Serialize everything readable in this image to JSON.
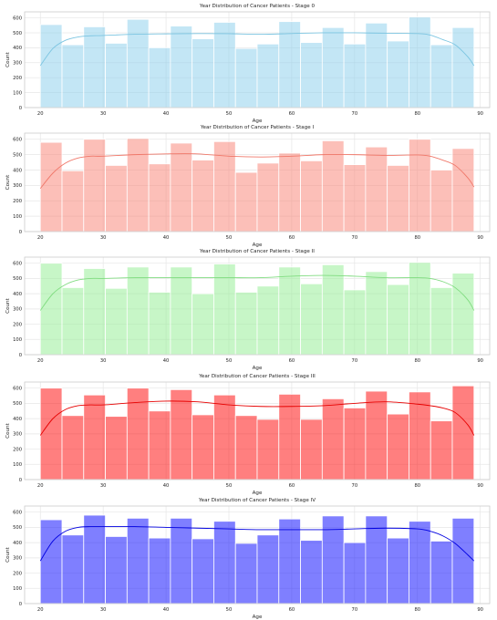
{
  "chart_data": [
    {
      "type": "bar",
      "title": "Year Distribution of Cancer Patients - Stage 0",
      "xlabel": "Age",
      "ylabel": "Count",
      "xlim": [
        17.5,
        91.5
      ],
      "ylim": [
        0,
        640
      ],
      "xticks": [
        20,
        30,
        40,
        50,
        60,
        70,
        80,
        90
      ],
      "yticks": [
        0,
        100,
        200,
        300,
        400,
        500,
        600
      ],
      "bin_start": 20,
      "bin_width": 3.45,
      "values": [
        555,
        420,
        540,
        430,
        590,
        400,
        545,
        460,
        570,
        395,
        425,
        575,
        435,
        535,
        425,
        565,
        445,
        605,
        420,
        535
      ],
      "kde": [
        [
          20,
          280
        ],
        [
          22,
          395
        ],
        [
          24,
          450
        ],
        [
          26,
          472
        ],
        [
          28,
          480
        ],
        [
          30,
          482
        ],
        [
          35,
          490
        ],
        [
          40,
          493
        ],
        [
          45,
          495
        ],
        [
          50,
          494
        ],
        [
          55,
          490
        ],
        [
          60,
          495
        ],
        [
          65,
          500
        ],
        [
          70,
          500
        ],
        [
          75,
          497
        ],
        [
          80,
          495
        ],
        [
          82,
          485
        ],
        [
          84,
          455
        ],
        [
          86,
          420
        ],
        [
          88,
          340
        ],
        [
          89,
          280
        ]
      ],
      "color": "#87ceeb",
      "line_color": "#7cc5e1",
      "alpha": 0.5,
      "grid": true
    },
    {
      "type": "bar",
      "title": "Year Distribution of Cancer Patients - Stage I",
      "xlabel": "Age",
      "ylabel": "Count",
      "xlim": [
        17.5,
        91.5
      ],
      "ylim": [
        0,
        640
      ],
      "xticks": [
        20,
        30,
        40,
        50,
        60,
        70,
        80,
        90
      ],
      "yticks": [
        0,
        100,
        200,
        300,
        400,
        500,
        600
      ],
      "bin_start": 20,
      "bin_width": 3.45,
      "values": [
        580,
        395,
        600,
        430,
        605,
        440,
        575,
        465,
        585,
        385,
        445,
        510,
        460,
        590,
        435,
        550,
        430,
        600,
        400,
        540
      ],
      "kde": [
        [
          20,
          280
        ],
        [
          22,
          380
        ],
        [
          24,
          445
        ],
        [
          26,
          478
        ],
        [
          28,
          490
        ],
        [
          30,
          490
        ],
        [
          35,
          500
        ],
        [
          40,
          505
        ],
        [
          45,
          505
        ],
        [
          50,
          490
        ],
        [
          55,
          485
        ],
        [
          60,
          490
        ],
        [
          65,
          500
        ],
        [
          70,
          500
        ],
        [
          75,
          495
        ],
        [
          80,
          498
        ],
        [
          82,
          490
        ],
        [
          84,
          465
        ],
        [
          86,
          430
        ],
        [
          88,
          350
        ],
        [
          89,
          290
        ]
      ],
      "color": "#fa8072",
      "line_color": "#f0786a",
      "alpha": 0.5,
      "grid": true
    },
    {
      "type": "bar",
      "title": "Year Distribution of Cancer Patients - Stage II",
      "xlabel": "Age",
      "ylabel": "Count",
      "xlim": [
        17.5,
        91.5
      ],
      "ylim": [
        0,
        640
      ],
      "xticks": [
        20,
        30,
        40,
        50,
        60,
        70,
        80,
        90
      ],
      "yticks": [
        0,
        100,
        200,
        300,
        400,
        500,
        600
      ],
      "bin_start": 20,
      "bin_width": 3.45,
      "values": [
        600,
        440,
        565,
        435,
        575,
        410,
        575,
        400,
        595,
        410,
        450,
        575,
        465,
        590,
        425,
        545,
        460,
        605,
        440,
        535
      ],
      "kde": [
        [
          20,
          290
        ],
        [
          22,
          400
        ],
        [
          24,
          460
        ],
        [
          26,
          490
        ],
        [
          28,
          500
        ],
        [
          30,
          500
        ],
        [
          35,
          505
        ],
        [
          40,
          505
        ],
        [
          45,
          505
        ],
        [
          50,
          505
        ],
        [
          55,
          505
        ],
        [
          60,
          515
        ],
        [
          65,
          520
        ],
        [
          70,
          515
        ],
        [
          75,
          505
        ],
        [
          80,
          505
        ],
        [
          82,
          500
        ],
        [
          84,
          480
        ],
        [
          86,
          440
        ],
        [
          88,
          360
        ],
        [
          89,
          290
        ]
      ],
      "color": "#90ee90",
      "line_color": "#80dc80",
      "alpha": 0.5,
      "grid": true
    },
    {
      "type": "bar",
      "title": "Year Distribution of Cancer Patients - Stage III",
      "xlabel": "Age",
      "ylabel": "Count",
      "xlim": [
        17.5,
        91.5
      ],
      "ylim": [
        0,
        640
      ],
      "xticks": [
        20,
        30,
        40,
        50,
        60,
        70,
        80,
        90
      ],
      "yticks": [
        0,
        100,
        200,
        300,
        400,
        500,
        600
      ],
      "bin_start": 20,
      "bin_width": 3.45,
      "values": [
        600,
        420,
        555,
        415,
        600,
        450,
        590,
        425,
        555,
        420,
        395,
        560,
        395,
        530,
        470,
        580,
        430,
        575,
        385,
        615
      ],
      "kde": [
        [
          20,
          290
        ],
        [
          22,
          400
        ],
        [
          24,
          460
        ],
        [
          26,
          485
        ],
        [
          28,
          490
        ],
        [
          30,
          490
        ],
        [
          35,
          505
        ],
        [
          40,
          515
        ],
        [
          45,
          510
        ],
        [
          50,
          490
        ],
        [
          55,
          480
        ],
        [
          60,
          480
        ],
        [
          65,
          485
        ],
        [
          70,
          500
        ],
        [
          75,
          510
        ],
        [
          80,
          495
        ],
        [
          82,
          485
        ],
        [
          84,
          470
        ],
        [
          86,
          440
        ],
        [
          88,
          360
        ],
        [
          89,
          290
        ]
      ],
      "color": "#ff0000",
      "line_color": "#e60000",
      "alpha": 0.5,
      "grid": true
    },
    {
      "type": "bar",
      "title": "Year Distribution of Cancer Patients - Stage IV",
      "xlabel": "Age",
      "ylabel": "Count",
      "xlim": [
        17.5,
        91.5
      ],
      "ylim": [
        0,
        640
      ],
      "xticks": [
        20,
        30,
        40,
        50,
        60,
        70,
        80,
        90
      ],
      "yticks": [
        0,
        100,
        200,
        300,
        400,
        500,
        600
      ],
      "bin_start": 20,
      "bin_width": 3.45,
      "values": [
        550,
        450,
        580,
        440,
        560,
        430,
        560,
        425,
        540,
        395,
        450,
        555,
        415,
        575,
        400,
        575,
        430,
        540,
        410,
        560
      ],
      "kde": [
        [
          20,
          280
        ],
        [
          22,
          410
        ],
        [
          24,
          475
        ],
        [
          26,
          500
        ],
        [
          28,
          505
        ],
        [
          30,
          505
        ],
        [
          35,
          505
        ],
        [
          40,
          500
        ],
        [
          45,
          495
        ],
        [
          50,
          490
        ],
        [
          55,
          485
        ],
        [
          60,
          485
        ],
        [
          65,
          485
        ],
        [
          70,
          490
        ],
        [
          75,
          495
        ],
        [
          80,
          490
        ],
        [
          82,
          475
        ],
        [
          84,
          445
        ],
        [
          86,
          395
        ],
        [
          88,
          320
        ],
        [
          89,
          280
        ]
      ],
      "color": "#0000ff",
      "line_color": "#0000e0",
      "alpha": 0.5,
      "grid": true
    }
  ]
}
